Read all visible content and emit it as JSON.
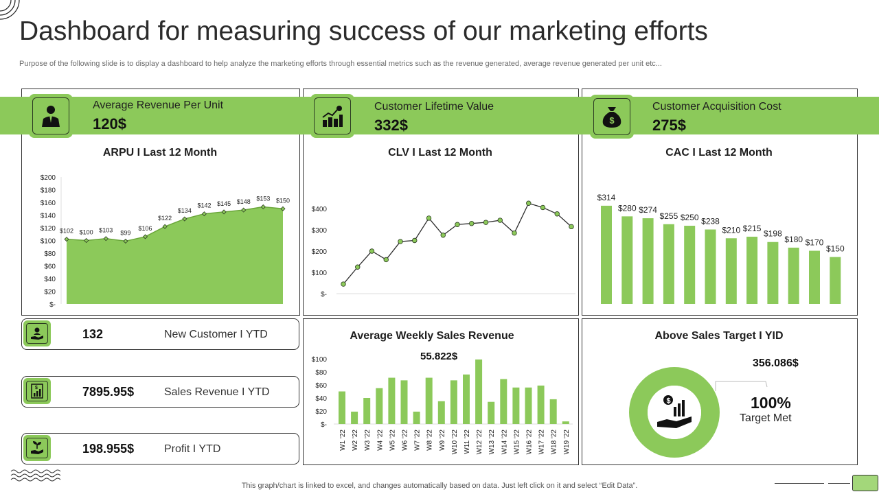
{
  "header": {
    "title": "Dashboard for measuring success of our marketing efforts",
    "subtitle": "Purpose of the following slide is to display a dashboard to help analyze the marketing efforts through essential metrics such as the revenue generated, average revenue generated per unit etc..."
  },
  "kpis": [
    {
      "label": "Average Revenue  Per Unit",
      "value": "120$",
      "icon": "businessman-icon"
    },
    {
      "label": "Customer  Lifetime Value",
      "value": "332$",
      "icon": "growth-chart-icon"
    },
    {
      "label": "Customer Acquisition Cost",
      "value": "275$",
      "icon": "money-bag-icon"
    }
  ],
  "stats": [
    {
      "value": "132",
      "label": "New Customer  I  YTD",
      "icon": "hand-user-icon"
    },
    {
      "value": "7895.95$",
      "label": "Sales Revenue  I  YTD",
      "icon": "sales-report-icon"
    },
    {
      "value": "198.955$",
      "label": "Profit  I  YTD",
      "icon": "plant-hand-icon"
    }
  ],
  "charts": {
    "arpu_title": "ARPU I Last 12 Month",
    "clv_title": "CLV I Last 12 Month",
    "cac_title": "CAC I Last 12 Month",
    "weekly_title": "Average Weekly Sales Revenue",
    "weekly_highlight": "55.822$",
    "target_title": "Above Sales Target I YID",
    "target_amount": "356.086$",
    "target_percent": "100%",
    "target_caption": "Target Met"
  },
  "chart_data": [
    {
      "id": "arpu",
      "type": "area",
      "title": "ARPU I Last 12 Month",
      "y_ticks": [
        "$200",
        "$180",
        "$160",
        "$140",
        "$120",
        "$100",
        "$80",
        "$60",
        "$40",
        "$20",
        "$-"
      ],
      "ylim": [
        0,
        200
      ],
      "values": [
        102,
        100,
        103,
        99,
        106,
        122,
        134,
        142,
        145,
        148,
        153,
        150
      ],
      "labels": [
        "$102",
        "$100",
        "$103",
        "$99",
        "$106",
        "$122",
        "$134",
        "$142",
        "$145",
        "$148",
        "$153",
        "$150"
      ],
      "color": "#8cc95a",
      "grid": false
    },
    {
      "id": "clv",
      "type": "line",
      "title": "CLV I Last 12 Month",
      "y_ticks": [
        "$400",
        "$300",
        "$200",
        "$100",
        "$-"
      ],
      "ylim": [
        0,
        400
      ],
      "values": [
        45,
        125,
        200,
        160,
        245,
        250,
        355,
        275,
        325,
        330,
        335,
        345,
        285,
        425,
        405,
        375,
        315
      ],
      "color": "#8cc95a",
      "grid": false
    },
    {
      "id": "cac",
      "type": "bar",
      "title": "CAC I Last 12 Month",
      "values": [
        314,
        280,
        274,
        255,
        250,
        238,
        210,
        215,
        198,
        180,
        170,
        150
      ],
      "labels": [
        "$314",
        "$280",
        "$274",
        "$255",
        "$250",
        "$238",
        "$210",
        "$215",
        "$198",
        "$180",
        "$170",
        "$150"
      ],
      "ylim": [
        0,
        340
      ],
      "color": "#8cc95a",
      "grid": false
    },
    {
      "id": "weekly",
      "type": "bar",
      "title": "Average Weekly Sales Revenue",
      "categories": [
        "W1 '22",
        "W2 '22",
        "W3 '22",
        "W4 '22",
        "W5 '22",
        "W6 '22",
        "W7 '22",
        "W8 '22",
        "W9 '22",
        "W10 '22",
        "W11 '22",
        "W12 '22",
        "W13 '22",
        "W14 '22",
        "W15 '22",
        "W16 '22",
        "W17 '22",
        "W18 '22",
        "W19 '22"
      ],
      "values": [
        50,
        19,
        40,
        55,
        71,
        67,
        19,
        71,
        35,
        67,
        76,
        99,
        34,
        69,
        56,
        56,
        59,
        38,
        4
      ],
      "y_ticks": [
        "$100",
        "$80",
        "$60",
        "$40",
        "$20",
        "$-"
      ],
      "ylim": [
        0,
        100
      ],
      "color": "#8cc95a",
      "grid": false
    },
    {
      "id": "target",
      "type": "pie",
      "title": "Above Sales Target I YID",
      "values": [
        100
      ],
      "labels": [
        "100%"
      ],
      "color": "#8cc95a"
    }
  ],
  "footer": {
    "note": "This graph/chart is linked to excel,  and changes automatically based on data. Just left click on it and select “Edit Data”."
  }
}
